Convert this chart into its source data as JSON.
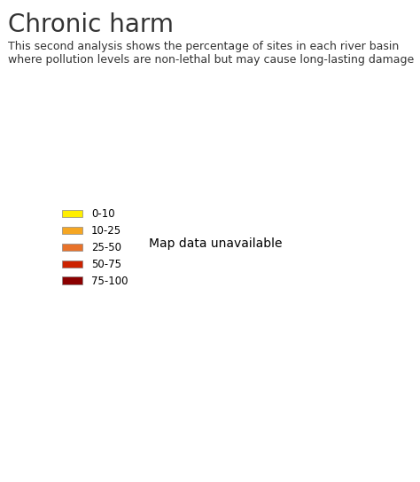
{
  "title": "Chronic harm",
  "subtitle": "This second analysis shows the percentage of sites in each river basin\nwhere pollution levels are non-lethal but may cause long-lasting damage",
  "title_fontsize": 20,
  "subtitle_fontsize": 9,
  "title_color": "#333333",
  "background_color": "#ffffff",
  "legend_labels": [
    "0-10",
    "10-25",
    "25-50",
    "50-75",
    "75-100"
  ],
  "legend_colors": [
    "#FFEF00",
    "#F5A623",
    "#E8722A",
    "#CC2200",
    "#8B0000"
  ],
  "country_colors": {
    "Iceland": "#FFEF00",
    "Norway": "#F5A623",
    "Sweden": "#F5A623",
    "Finland": "#F5A623",
    "Denmark": "#E8722A",
    "United Kingdom": "#CC2200",
    "Ireland": "#E8722A",
    "Portugal": "#E8722A",
    "Spain": "#E8722A",
    "France": "#8B0000",
    "Belgium": "#8B0000",
    "Netherlands": "#CC2200",
    "Luxembourg": "#8B0000",
    "Germany": "#CC2200",
    "Switzerland": "#8B0000",
    "Austria": "#8B0000",
    "Italy": "#E8722A",
    "Poland": "#CC2200",
    "Czechia": "#8B0000",
    "Slovakia": "#8B0000",
    "Hungary": "#E8722A",
    "Slovenia": "#E8722A",
    "Croatia": "#E8722A",
    "Bosnia and Herz.": "#E8722A",
    "Serbia": "#E8722A",
    "Montenegro": "#E8722A",
    "Macedonia": "#E8722A",
    "Albania": "#E8722A",
    "Greece": "#E8722A",
    "Bulgaria": "#E8722A",
    "Romania": "#E8722A",
    "Moldova": "#E8722A",
    "Ukraine": "#E8722A",
    "Belarus": "#CC2200",
    "Lithuania": "#CC2200",
    "Latvia": "#CC2200",
    "Estonia": "#F5A623",
    "Russia": "#8B0000",
    "Turkey": "#FFEF00",
    "Cyprus": "#E8722A",
    "Malta": "#E8722A",
    "Kosovo": "#E8722A"
  },
  "map_xlim": [
    -25,
    45
  ],
  "map_ylim": [
    34,
    72
  ],
  "figsize": [
    4.74,
    5.44
  ],
  "dpi": 100,
  "ocean_color": "#ffffff",
  "border_color": "#ffffff",
  "border_linewidth": 0.5
}
